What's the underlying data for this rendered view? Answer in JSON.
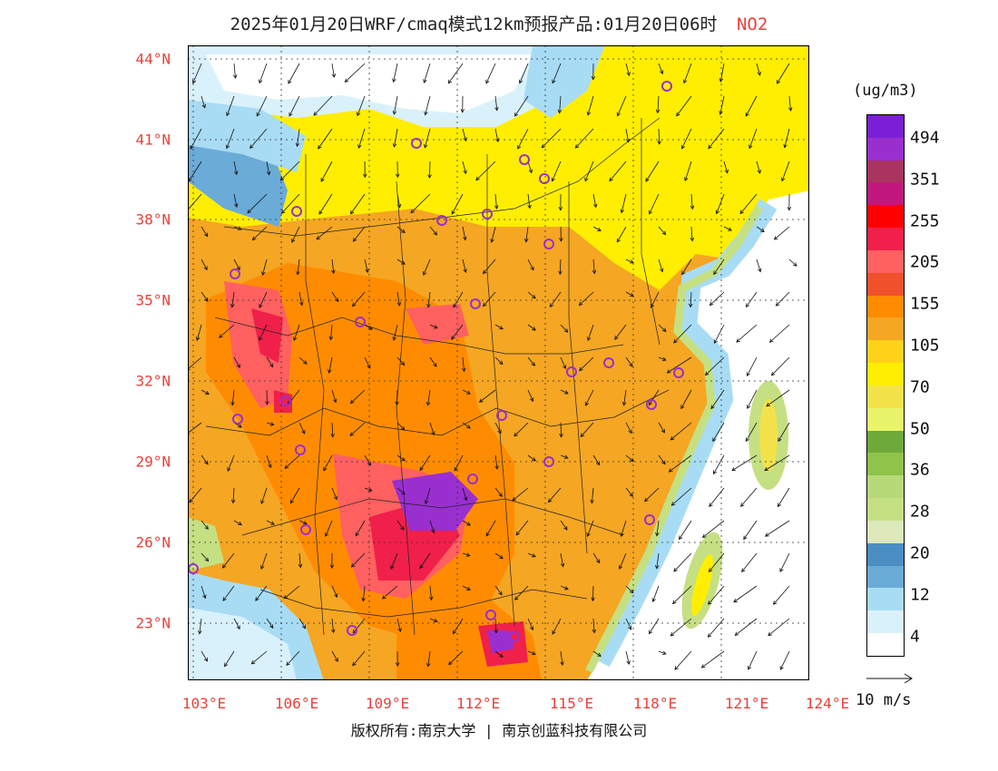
{
  "title": {
    "main": "2025年01月20日WRF/cmaq模式12km预报产品:01月20日06时",
    "pollutant": "NO2"
  },
  "axes": {
    "lat_labels": [
      "44°N",
      "41°N",
      "38°N",
      "35°N",
      "32°N",
      "29°N",
      "26°N",
      "23°N"
    ],
    "lon_labels": [
      "103°E",
      "106°E",
      "109°E",
      "112°E",
      "115°E",
      "118°E",
      "121°E",
      "124°E"
    ],
    "label_color": "#e8413a"
  },
  "colorbar": {
    "unit": "(ug/m3)",
    "labels": [
      "494",
      "351",
      "255",
      "205",
      "155",
      "105",
      "70",
      "50",
      "36",
      "28",
      "20",
      "12",
      "4"
    ],
    "colors": [
      "#7b1fd6",
      "#9a2fd0",
      "#a8345f",
      "#c2187e",
      "#ff0000",
      "#f0204a",
      "#ff6060",
      "#f0502a",
      "#ff8c00",
      "#f5a623",
      "#ffd21a",
      "#ffee00",
      "#f3e24a",
      "#e8f56a",
      "#6eaa3a",
      "#8fc34a",
      "#b7d977",
      "#c5e082",
      "#dde8bb",
      "#4a8ec4",
      "#6aabd8",
      "#a8dcf5",
      "#d9f1fb",
      "#ffffff"
    ]
  },
  "wind_reference": "10 m/s",
  "copyright": "版权所有:南京大学 | 南京创蓝科技有限公司",
  "map": {
    "colors": {
      "white": "#ffffff",
      "lightblue": "#d9f1fb",
      "blue": "#a8dcf5",
      "midblue": "#6aabd8",
      "green": "#c5e082",
      "yellowgreen": "#f3e24a",
      "yellow": "#ffee00",
      "gold": "#ffd21a",
      "lightorange": "#f5a623",
      "orange": "#ff8c00",
      "salmon": "#ff6060",
      "red": "#f0204a",
      "purple": "#9a2fd0"
    },
    "cities": 30
  }
}
